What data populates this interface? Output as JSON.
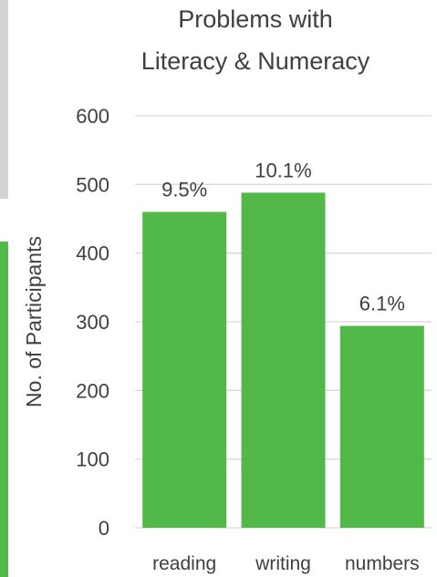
{
  "chart_data": {
    "type": "bar",
    "title_lines": [
      "Problems with",
      "Literacy & Numeracy"
    ],
    "xlabel": "",
    "ylabel": "No. of Participants",
    "categories": [
      "reading",
      "writing",
      "numbers"
    ],
    "values": [
      460,
      488,
      294
    ],
    "data_labels": [
      "9.5%",
      "10.1%",
      "6.1%"
    ],
    "ylim": [
      0,
      600
    ],
    "yticks": [
      0,
      100,
      200,
      300,
      400,
      500,
      600
    ],
    "grid": true,
    "legend": "none",
    "bar_color": "#52b848",
    "grid_color": "#d9d9d9"
  }
}
